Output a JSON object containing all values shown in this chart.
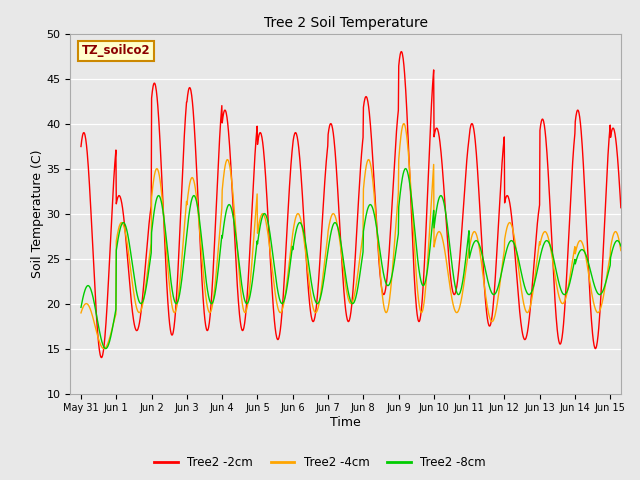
{
  "title": "Tree 2 Soil Temperature",
  "xlabel": "Time",
  "ylabel": "Soil Temperature (C)",
  "ylim": [
    10,
    50
  ],
  "xlim_start": -0.3,
  "xlim_end": 15.3,
  "fig_bg_color": "#e8e8e8",
  "plot_bg_color": "#e8e8e8",
  "label_box_text": "TZ_soilco2",
  "label_box_color": "#ffffcc",
  "label_box_border": "#cc8800",
  "line_colors": [
    "#ff0000",
    "#ffa500",
    "#00cc00"
  ],
  "legend_labels": [
    "Tree2 -2cm",
    "Tree2 -4cm",
    "Tree2 -8cm"
  ],
  "xtick_labels": [
    "May 31",
    "Jun 1",
    "Jun 2",
    "Jun 3",
    "Jun 4",
    "Jun 5",
    "Jun 6",
    "Jun 7",
    "Jun 8",
    "Jun 9",
    "Jun 10",
    "Jun 11",
    "Jun 12",
    "Jun 13",
    "Jun 14",
    "Jun 15"
  ],
  "ytick_values": [
    10,
    15,
    20,
    25,
    30,
    35,
    40,
    45,
    50
  ],
  "red_day_peaks": [
    39,
    32,
    44.5,
    44,
    41.5,
    39,
    39,
    40,
    43,
    48,
    39.5,
    40,
    32,
    40.5,
    41.5,
    39.5
  ],
  "red_day_valleys": [
    14,
    17,
    16.5,
    17,
    17,
    16,
    18,
    18,
    21,
    18,
    21,
    17.5,
    16,
    15.5,
    15,
    18
  ],
  "red_peak_phase": [
    0.58,
    0.58,
    0.58,
    0.58,
    0.58,
    0.58,
    0.58,
    0.58,
    0.58,
    0.58,
    0.58,
    0.58,
    0.58,
    0.58,
    0.58,
    0.58
  ],
  "orange_day_peaks": [
    20,
    29,
    35,
    34,
    36,
    30,
    30,
    30,
    36,
    40,
    28,
    28,
    29,
    28,
    27,
    28
  ],
  "orange_day_valleys": [
    15,
    19,
    19,
    19,
    19,
    19,
    19,
    20,
    19,
    19,
    19,
    18,
    19,
    20,
    19,
    18
  ],
  "orange_peak_phase": [
    0.65,
    0.65,
    0.65,
    0.65,
    0.65,
    0.65,
    0.65,
    0.65,
    0.65,
    0.65,
    0.65,
    0.65,
    0.65,
    0.65,
    0.65,
    0.65
  ],
  "green_day_peaks": [
    22,
    29,
    32,
    32,
    31,
    30,
    29,
    29,
    31,
    35,
    32,
    27,
    27,
    27,
    26,
    27
  ],
  "green_day_valleys": [
    15,
    20,
    20,
    20,
    20,
    20,
    20,
    20,
    22,
    22,
    21,
    21,
    21,
    21,
    21,
    21
  ],
  "green_peak_phase": [
    0.7,
    0.7,
    0.7,
    0.7,
    0.7,
    0.7,
    0.7,
    0.7,
    0.7,
    0.7,
    0.7,
    0.7,
    0.7,
    0.7,
    0.7,
    0.7
  ],
  "n_points_per_day": 96
}
